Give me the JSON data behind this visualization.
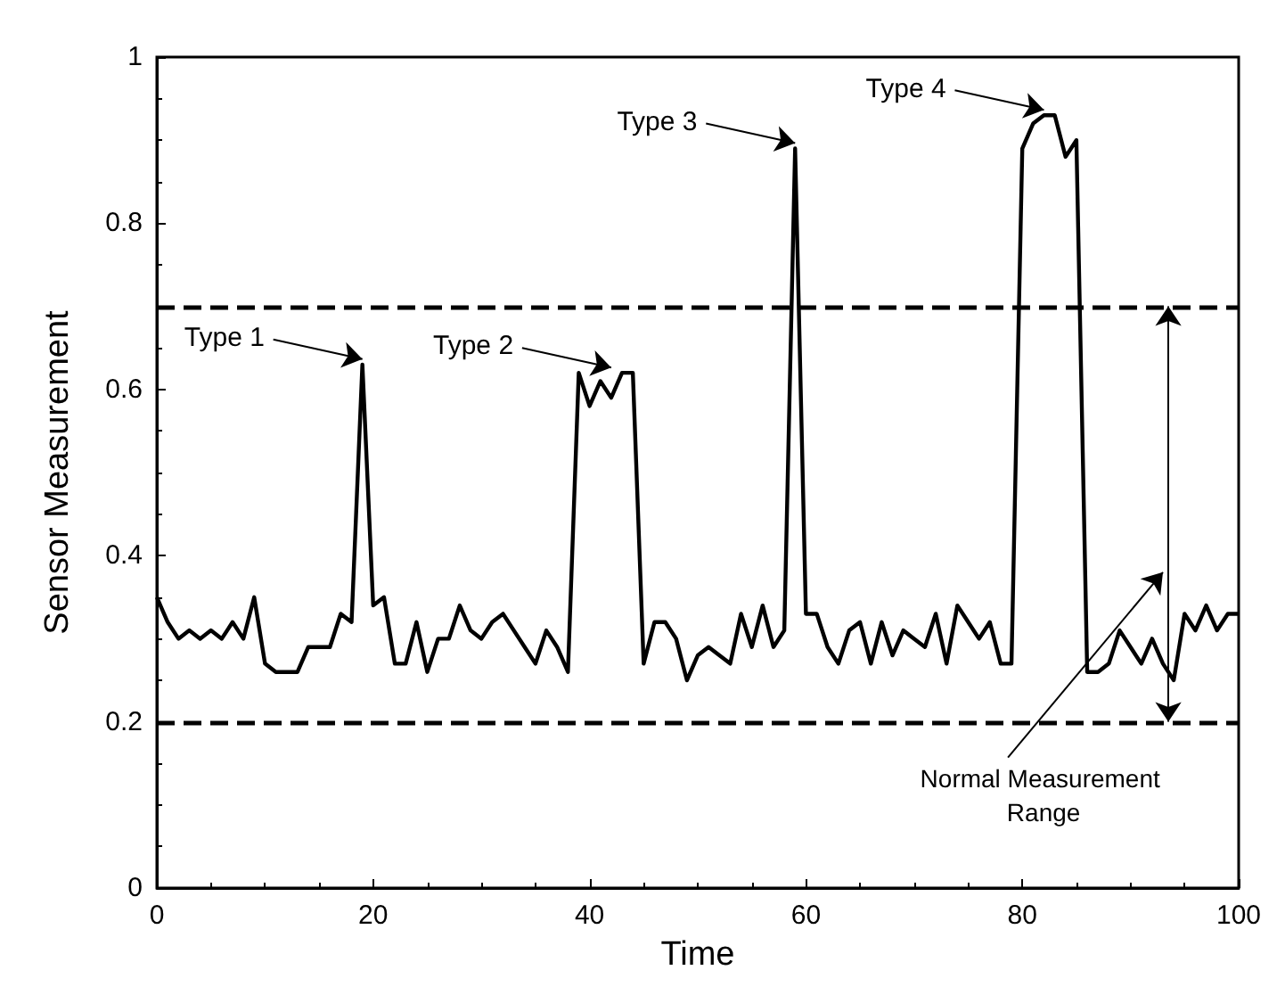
{
  "chart_data": {
    "type": "line",
    "xlabel": "Time",
    "ylabel": "Sensor Measurement",
    "x": [
      0,
      1,
      2,
      3,
      4,
      5,
      6,
      7,
      8,
      9,
      10,
      11,
      12,
      13,
      14,
      15,
      16,
      17,
      18,
      19,
      20,
      21,
      22,
      23,
      24,
      25,
      26,
      27,
      28,
      29,
      30,
      31,
      32,
      33,
      34,
      35,
      36,
      37,
      38,
      39,
      40,
      41,
      42,
      43,
      44,
      45,
      46,
      47,
      48,
      49,
      50,
      51,
      52,
      53,
      54,
      55,
      56,
      57,
      58,
      59,
      60,
      61,
      62,
      63,
      64,
      65,
      66,
      67,
      68,
      69,
      70,
      71,
      72,
      73,
      74,
      75,
      76,
      77,
      78,
      79,
      80,
      81,
      82,
      83,
      84,
      85,
      86,
      87,
      88,
      89,
      90,
      91,
      92,
      93,
      94,
      95,
      96,
      97,
      98,
      99,
      100
    ],
    "series": [
      {
        "color": "#000000",
        "values": [
          0.35,
          0.32,
          0.3,
          0.31,
          0.3,
          0.31,
          0.3,
          0.32,
          0.3,
          0.35,
          0.27,
          0.26,
          0.26,
          0.26,
          0.29,
          0.29,
          0.29,
          0.33,
          0.32,
          0.63,
          0.34,
          0.35,
          0.27,
          0.27,
          0.32,
          0.26,
          0.3,
          0.3,
          0.34,
          0.31,
          0.3,
          0.32,
          0.33,
          0.31,
          0.29,
          0.27,
          0.31,
          0.29,
          0.26,
          0.62,
          0.58,
          0.61,
          0.59,
          0.62,
          0.62,
          0.27,
          0.32,
          0.32,
          0.3,
          0.25,
          0.28,
          0.29,
          0.28,
          0.27,
          0.33,
          0.29,
          0.34,
          0.29,
          0.31,
          0.89,
          0.33,
          0.33,
          0.29,
          0.27,
          0.31,
          0.32,
          0.27,
          0.32,
          0.28,
          0.31,
          0.3,
          0.29,
          0.33,
          0.27,
          0.34,
          0.32,
          0.3,
          0.32,
          0.27,
          0.27,
          0.89,
          0.92,
          0.93,
          0.93,
          0.88,
          0.9,
          0.26,
          0.26,
          0.27,
          0.31,
          0.29,
          0.27,
          0.3,
          0.27,
          0.25,
          0.33,
          0.31,
          0.34,
          0.31,
          0.33,
          0.33
        ]
      }
    ],
    "xlim": [
      0,
      100
    ],
    "xticks": [
      0,
      20,
      40,
      60,
      80,
      100
    ],
    "ylim": [
      0,
      1
    ],
    "yticks": [
      0,
      0.2,
      0.4,
      0.6,
      0.8,
      1
    ],
    "ref_lines": [
      {
        "axis": "y",
        "value": 0.7,
        "label": null,
        "line_style": "dashed",
        "color": "#000000"
      },
      {
        "axis": "y",
        "value": 0.2,
        "label": null,
        "line_style": "dashed",
        "color": "#000000"
      }
    ],
    "annotations": [
      {
        "text": "Type 1",
        "x": 19,
        "y": 0.63
      },
      {
        "text": "Type 2",
        "x": 42,
        "y": 0.62
      },
      {
        "text": "Type 3",
        "x": 59,
        "y": 0.89
      },
      {
        "text": "Type 4",
        "x": 82,
        "y": 0.93
      },
      "Normal Measurement Range"
    ],
    "line_style": "solid",
    "marker": "none",
    "grid": false
  }
}
